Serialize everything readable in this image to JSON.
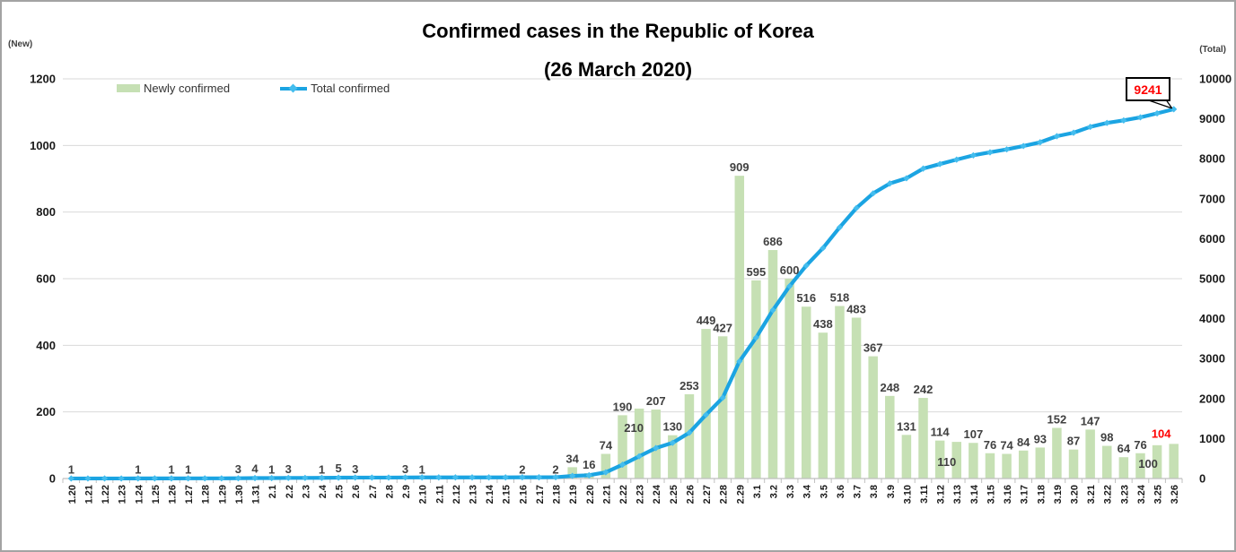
{
  "title": {
    "line1": "Confirmed cases in the Republic of Korea",
    "line2": "(26 March 2020)"
  },
  "axis_units": {
    "left": "(New)",
    "right": "(Total)"
  },
  "legend": {
    "bar_label": "Newly confirmed",
    "line_label": "Total confirmed"
  },
  "callout": {
    "value": "9241"
  },
  "colors": {
    "bar": "#c6e0b4",
    "line": "#1ba4e2",
    "marker": "#44bdee",
    "bar_label": "#404040",
    "axis_text": "#1a1a1a",
    "highlight": "#ff0000",
    "grid": "#d9d9d9",
    "axis": "#bfbfbf"
  },
  "chart_data": {
    "type": "bar+line",
    "title": "Confirmed cases in the Republic of Korea (26 March 2020)",
    "categories": [
      "1.20",
      "1.21",
      "1.22",
      "1.23",
      "1.24",
      "1.25",
      "1.26",
      "1.27",
      "1.28",
      "1.29",
      "1.30",
      "1.31",
      "2.1",
      "2.2",
      "2.3",
      "2.4",
      "2.5",
      "2.6",
      "2.7",
      "2.8",
      "2.9",
      "2.10",
      "2.11",
      "2.12",
      "2.13",
      "2.14",
      "2.15",
      "2.16",
      "2.17",
      "2.18",
      "2.19",
      "2.20",
      "2.21",
      "2.22",
      "2.23",
      "2.24",
      "2.25",
      "2.26",
      "2.27",
      "2.28",
      "2.29",
      "3.1",
      "3.2",
      "3.3",
      "3.4",
      "3.5",
      "3.6",
      "3.7",
      "3.8",
      "3.9",
      "3.10",
      "3.11",
      "3.12",
      "3.13",
      "3.14",
      "3.15",
      "3.16",
      "3.17",
      "3.18",
      "3.19",
      "3.20",
      "3.21",
      "3.22",
      "3.23",
      "3.24",
      "3.25",
      "3.26"
    ],
    "series": [
      {
        "name": "Newly confirmed",
        "type": "bar",
        "axis": "left",
        "values": [
          1,
          0,
          0,
          0,
          1,
          0,
          1,
          1,
          0,
          0,
          3,
          4,
          1,
          3,
          0,
          1,
          5,
          3,
          0,
          0,
          3,
          1,
          0,
          0,
          0,
          0,
          0,
          2,
          0,
          2,
          34,
          16,
          74,
          190,
          210,
          207,
          130,
          253,
          449,
          427,
          909,
          595,
          686,
          600,
          516,
          438,
          518,
          483,
          367,
          248,
          131,
          242,
          114,
          110,
          107,
          76,
          74,
          84,
          93,
          152,
          87,
          147,
          98,
          64,
          76,
          100,
          104
        ]
      },
      {
        "name": "Total confirmed",
        "type": "line",
        "axis": "right",
        "values": [
          1,
          1,
          1,
          1,
          2,
          2,
          3,
          4,
          4,
          4,
          7,
          11,
          12,
          15,
          15,
          16,
          21,
          24,
          24,
          24,
          27,
          28,
          28,
          28,
          28,
          28,
          28,
          30,
          30,
          32,
          66,
          82,
          156,
          346,
          556,
          763,
          893,
          1146,
          1595,
          2022,
          2931,
          3526,
          4212,
          4812,
          5328,
          5766,
          6284,
          6767,
          7134,
          7382,
          7513,
          7755,
          7869,
          7979,
          8086,
          8162,
          8236,
          8320,
          8413,
          8565,
          8652,
          8799,
          8897,
          8961,
          9037,
          9137,
          9241
        ]
      }
    ],
    "left_axis": {
      "label": "(New)",
      "range": [
        0,
        1200
      ],
      "ticks": [
        0,
        200,
        400,
        600,
        800,
        1000,
        1200
      ]
    },
    "right_axis": {
      "label": "(Total)",
      "range": [
        0,
        10000
      ],
      "ticks": [
        0,
        1000,
        2000,
        3000,
        4000,
        5000,
        6000,
        7000,
        8000,
        9000,
        10000
      ]
    },
    "grid": "horizontal",
    "legend_position": "top-left-inside",
    "highlight_index": 66,
    "label_offsets": {
      "34": {
        "dx": -6,
        "dy": 31
      },
      "53": {
        "dx": -11,
        "dy": 32
      },
      "65": {
        "dx": -10,
        "dy": 30
      },
      "66": {
        "dx": -14,
        "dy": -2
      }
    },
    "annotations": {
      "last_total_callout": "9241",
      "last_new_value_red": "104"
    }
  }
}
